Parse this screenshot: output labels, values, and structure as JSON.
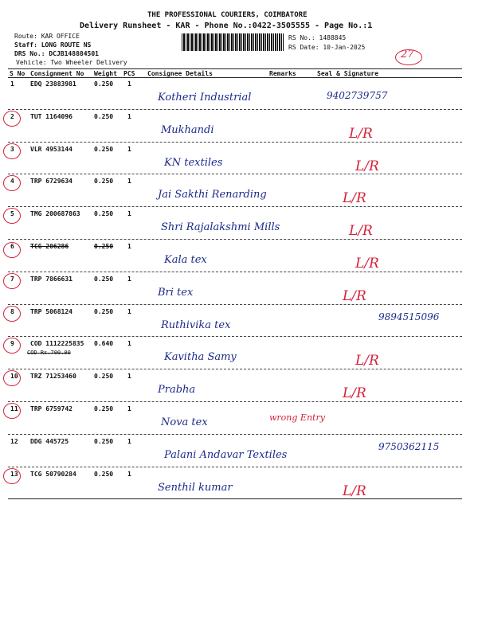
{
  "header": {
    "company": "THE PROFESSIONAL COURIERS, COIMBATORE",
    "title": "Delivery Runsheet - KAR - Phone No.:0422-3505555 - Page No.:1",
    "route": "Route: KAR OFFICE",
    "staff": "Staff: LONG ROUTE NS",
    "drs_no": "DRS No.: DCJB148884501",
    "vehicle": "Vehicle: Two Wheeler Delivery",
    "rs_no": "RS No.: 1488845",
    "rs_date": "RS Date: 10-Jan-2025",
    "count": "27"
  },
  "table": {
    "columns": [
      "S No",
      "Consignment No",
      "Weight",
      "PCS",
      "Consignee Details",
      "Remarks",
      "Seal & Signature"
    ],
    "rows": [
      {
        "sno": "1",
        "consignment": "EDQ 23883981",
        "weight": "0.250",
        "pcs": "1",
        "consignee": "Kotheri Industrial",
        "seal": "9402739757"
      },
      {
        "sno": "2",
        "consignment": "TUT 1164096",
        "weight": "0.250",
        "pcs": "1",
        "consignee": "Mukhandi",
        "seal": "L/R"
      },
      {
        "sno": "3",
        "consignment": "VLR 4953144",
        "weight": "0.250",
        "pcs": "1",
        "consignee": "KN textiles",
        "seal": "L/R"
      },
      {
        "sno": "4",
        "consignment": "TRP 6729634",
        "weight": "0.250",
        "pcs": "1",
        "consignee": "Jai Sakthi Renarding",
        "seal": "L/R"
      },
      {
        "sno": "5",
        "consignment": "TMG 200687863",
        "weight": "0.250",
        "pcs": "1",
        "consignee": "Shri Rajalakshmi Mills",
        "seal": "L/R"
      },
      {
        "sno": "6",
        "consignment": "TCG 206286",
        "weight": "0.250",
        "pcs": "1",
        "consignee": "Kala tex",
        "seal": "L/R"
      },
      {
        "sno": "7",
        "consignment": "TRP 7866631",
        "weight": "0.250",
        "pcs": "1",
        "consignee": "Bri tex",
        "seal": "L/R"
      },
      {
        "sno": "8",
        "consignment": "TRP 5068124",
        "weight": "0.250",
        "pcs": "1",
        "consignee": "Ruthivika tex",
        "seal": "9894515096"
      },
      {
        "sno": "9",
        "consignment": "COD 1112225835",
        "weight": "0.640",
        "pcs": "1",
        "note": "COD Rs.700.00",
        "consignee": "Kavitha Samy",
        "seal": "L/R"
      },
      {
        "sno": "10",
        "consignment": "TRZ 71253460",
        "weight": "0.250",
        "pcs": "1",
        "consignee": "Prabha",
        "seal": "L/R"
      },
      {
        "sno": "11",
        "consignment": "TRP 6759742",
        "weight": "0.250",
        "pcs": "1",
        "consignee": "Nova tex",
        "remark": "wrong Entry"
      },
      {
        "sno": "12",
        "consignment": "DDG 445725",
        "weight": "0.250",
        "pcs": "1",
        "consignee": "Palani Andavar Textiles",
        "seal": "9750362115"
      },
      {
        "sno": "13",
        "consignment": "TCG 50790284",
        "weight": "0.250",
        "pcs": "1",
        "consignee": "Senthil kumar",
        "seal": "L/R"
      }
    ]
  }
}
